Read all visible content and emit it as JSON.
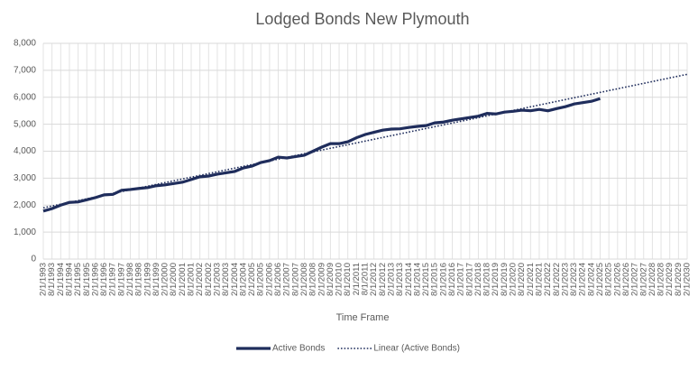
{
  "chart_data": {
    "type": "line",
    "title": "Lodged Bonds New Plymouth",
    "x_label": "Time Frame",
    "categories": [
      "2/1/1993",
      "8/1/1993",
      "2/1/1994",
      "8/1/1994",
      "2/1/1995",
      "8/1/1995",
      "2/1/1996",
      "8/1/1996",
      "2/1/1997",
      "8/1/1997",
      "2/1/1998",
      "8/1/1998",
      "2/1/1999",
      "8/1/1999",
      "2/1/2000",
      "8/1/2000",
      "2/1/2001",
      "8/1/2001",
      "2/1/2002",
      "8/1/2002",
      "2/1/2003",
      "8/1/2003",
      "2/1/2004",
      "8/1/2004",
      "2/1/2005",
      "8/1/2005",
      "2/1/2006",
      "8/1/2006",
      "2/1/2007",
      "8/1/2007",
      "2/1/2008",
      "8/1/2008",
      "2/1/2009",
      "8/1/2009",
      "2/1/2010",
      "8/1/2010",
      "2/1/2011",
      "8/1/2011",
      "2/1/2012",
      "8/1/2012",
      "2/1/2013",
      "8/1/2013",
      "2/1/2014",
      "8/1/2014",
      "2/1/2015",
      "8/1/2015",
      "2/1/2016",
      "8/1/2016",
      "2/1/2017",
      "8/1/2017",
      "2/1/2018",
      "8/1/2018",
      "2/1/2019",
      "8/1/2019",
      "2/1/2020",
      "8/1/2020",
      "2/1/2021",
      "8/1/2021",
      "2/1/2022",
      "8/1/2022",
      "2/1/2023",
      "8/1/2023",
      "2/1/2024",
      "8/1/2024",
      "2/1/2025",
      "8/1/2025",
      "2/1/2026",
      "8/1/2026",
      "2/1/2027",
      "8/1/2027",
      "2/1/2028",
      "8/1/2028",
      "2/1/2029",
      "8/1/2029",
      "2/1/2030"
    ],
    "series": [
      {
        "name": "Active Bonds",
        "color": "#1f2d5c",
        "style": "solid",
        "values": [
          1780,
          1870,
          2000,
          2100,
          2120,
          2200,
          2280,
          2380,
          2400,
          2550,
          2580,
          2620,
          2650,
          2720,
          2750,
          2800,
          2850,
          2950,
          3050,
          3080,
          3150,
          3200,
          3250,
          3380,
          3450,
          3580,
          3650,
          3780,
          3750,
          3800,
          3850,
          4000,
          4150,
          4280,
          4280,
          4350,
          4500,
          4620,
          4700,
          4780,
          4820,
          4830,
          4880,
          4920,
          4950,
          5050,
          5080,
          5150,
          5200,
          5250,
          5300,
          5400,
          5380,
          5450,
          5480,
          5520,
          5500,
          5550,
          5500,
          5580,
          5650,
          5750,
          5800,
          5850,
          5950,
          null,
          null,
          null,
          null,
          null,
          null,
          null,
          null,
          null,
          null
        ]
      },
      {
        "name": "Linear (Active Bonds)",
        "color": "#1f2d5c",
        "style": "dotted",
        "values": [
          1900,
          1967,
          2034,
          2101,
          2168,
          2234,
          2301,
          2368,
          2435,
          2502,
          2569,
          2636,
          2703,
          2770,
          2837,
          2903,
          2970,
          3037,
          3104,
          3171,
          3238,
          3305,
          3372,
          3439,
          3505,
          3572,
          3639,
          3706,
          3773,
          3840,
          3907,
          3974,
          4041,
          4108,
          4174,
          4241,
          4308,
          4375,
          4442,
          4509,
          4576,
          4643,
          4710,
          4777,
          4843,
          4910,
          4977,
          5044,
          5111,
          5178,
          5245,
          5312,
          5379,
          5446,
          5512,
          5579,
          5646,
          5713,
          5780,
          5847,
          5914,
          5981,
          6048,
          6115,
          6181,
          6248,
          6315,
          6382,
          6449,
          6516,
          6583,
          6650,
          6717,
          6784,
          6850
        ]
      }
    ],
    "ylim": [
      0,
      8000
    ],
    "yticks": [
      0,
      {
        "value": 1000,
        "label": "1,000"
      },
      {
        "value": 2000,
        "label": "2,000"
      },
      {
        "value": 3000,
        "label": "3,000"
      },
      {
        "value": 4000,
        "label": "4,000"
      },
      {
        "value": 5000,
        "label": "5,000"
      },
      {
        "value": 6000,
        "label": "6,000"
      },
      {
        "value": 7000,
        "label": "7,000"
      },
      {
        "value": 8000,
        "label": "8,000"
      }
    ],
    "grid": true,
    "legend": "bottom"
  }
}
